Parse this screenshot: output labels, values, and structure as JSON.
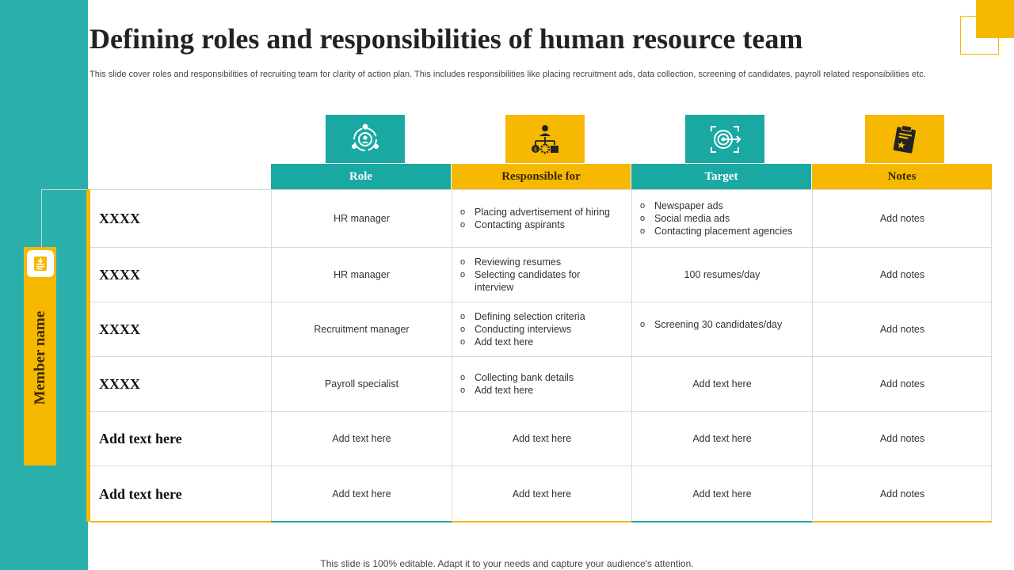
{
  "title": "Defining roles and responsibilities of human resource team",
  "subtitle": "This slide cover roles and responsibilities of recruiting team for clarity of action plan. This includes responsibilities like placing recruitment ads, data collection, screening of candidates, payroll related responsibilities etc.",
  "side_label": "Member name",
  "colors": {
    "teal": "#1aa8a2",
    "band": "#2ab0ac",
    "yellow": "#f6b800"
  },
  "columns": [
    {
      "label": "Role",
      "icon": "user-cycle-icon"
    },
    {
      "label": "Responsible for",
      "icon": "org-hierarchy-icon"
    },
    {
      "label": "Target",
      "icon": "target-arrow-icon"
    },
    {
      "label": "Notes",
      "icon": "clipboard-star-icon"
    }
  ],
  "rows": [
    {
      "member": "XXXX",
      "role": "HR manager",
      "responsible": [
        "Placing advertisement  of hiring",
        "Contacting aspirants"
      ],
      "target": [
        "Newspaper ads",
        "Social media ads",
        "Contacting placement agencies"
      ],
      "notes": "Add notes"
    },
    {
      "member": "XXXX",
      "role": "HR manager",
      "responsible": [
        "Reviewing  resumes",
        "Selecting candidates for interview"
      ],
      "target": "100 resumes/day",
      "notes": "Add notes"
    },
    {
      "member": "XXXX",
      "role": "Recruitment manager",
      "responsible": [
        "Defining  selection criteria",
        "Conducting  interviews",
        "Add text here"
      ],
      "target": [
        "Screening 30 candidates/day"
      ],
      "notes": "Add notes"
    },
    {
      "member": "XXXX",
      "role": "Payroll specialist",
      "responsible": [
        "Collecting bank details",
        "Add text here"
      ],
      "target": "Add text here",
      "notes": "Add notes"
    },
    {
      "member": "Add text here",
      "role": "Add text here",
      "responsible": "Add text here",
      "target": "Add text here",
      "notes": "Add notes"
    },
    {
      "member": "Add text here",
      "role": "Add text here",
      "responsible": "Add text here",
      "target": "Add text here",
      "notes": "Add notes"
    }
  ],
  "footer": "This slide is 100% editable. Adapt it to your needs and capture your audience's attention."
}
